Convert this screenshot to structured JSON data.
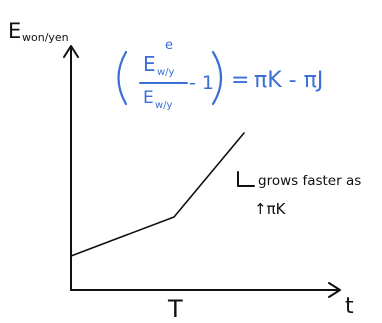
{
  "y_axis_label": "E",
  "y_axis_subscript": "won/yen",
  "x_axis_label": "t",
  "x_marker_label": "T",
  "equation": {
    "numerator_base": "E",
    "numerator_sub": "w/y",
    "numerator_sup": "e",
    "denominator_base": "E",
    "denominator_sub": "w/y",
    "minus_one": "- 1",
    "equals": "=",
    "rhs": "πK - πJ",
    "color": "#3b6fd6"
  },
  "annotation_line1": "grows faster as",
  "annotation_line2": "↑πK",
  "colors": {
    "ink": "#111111",
    "blue": "#3b6fd6",
    "background": "#ffffff"
  }
}
